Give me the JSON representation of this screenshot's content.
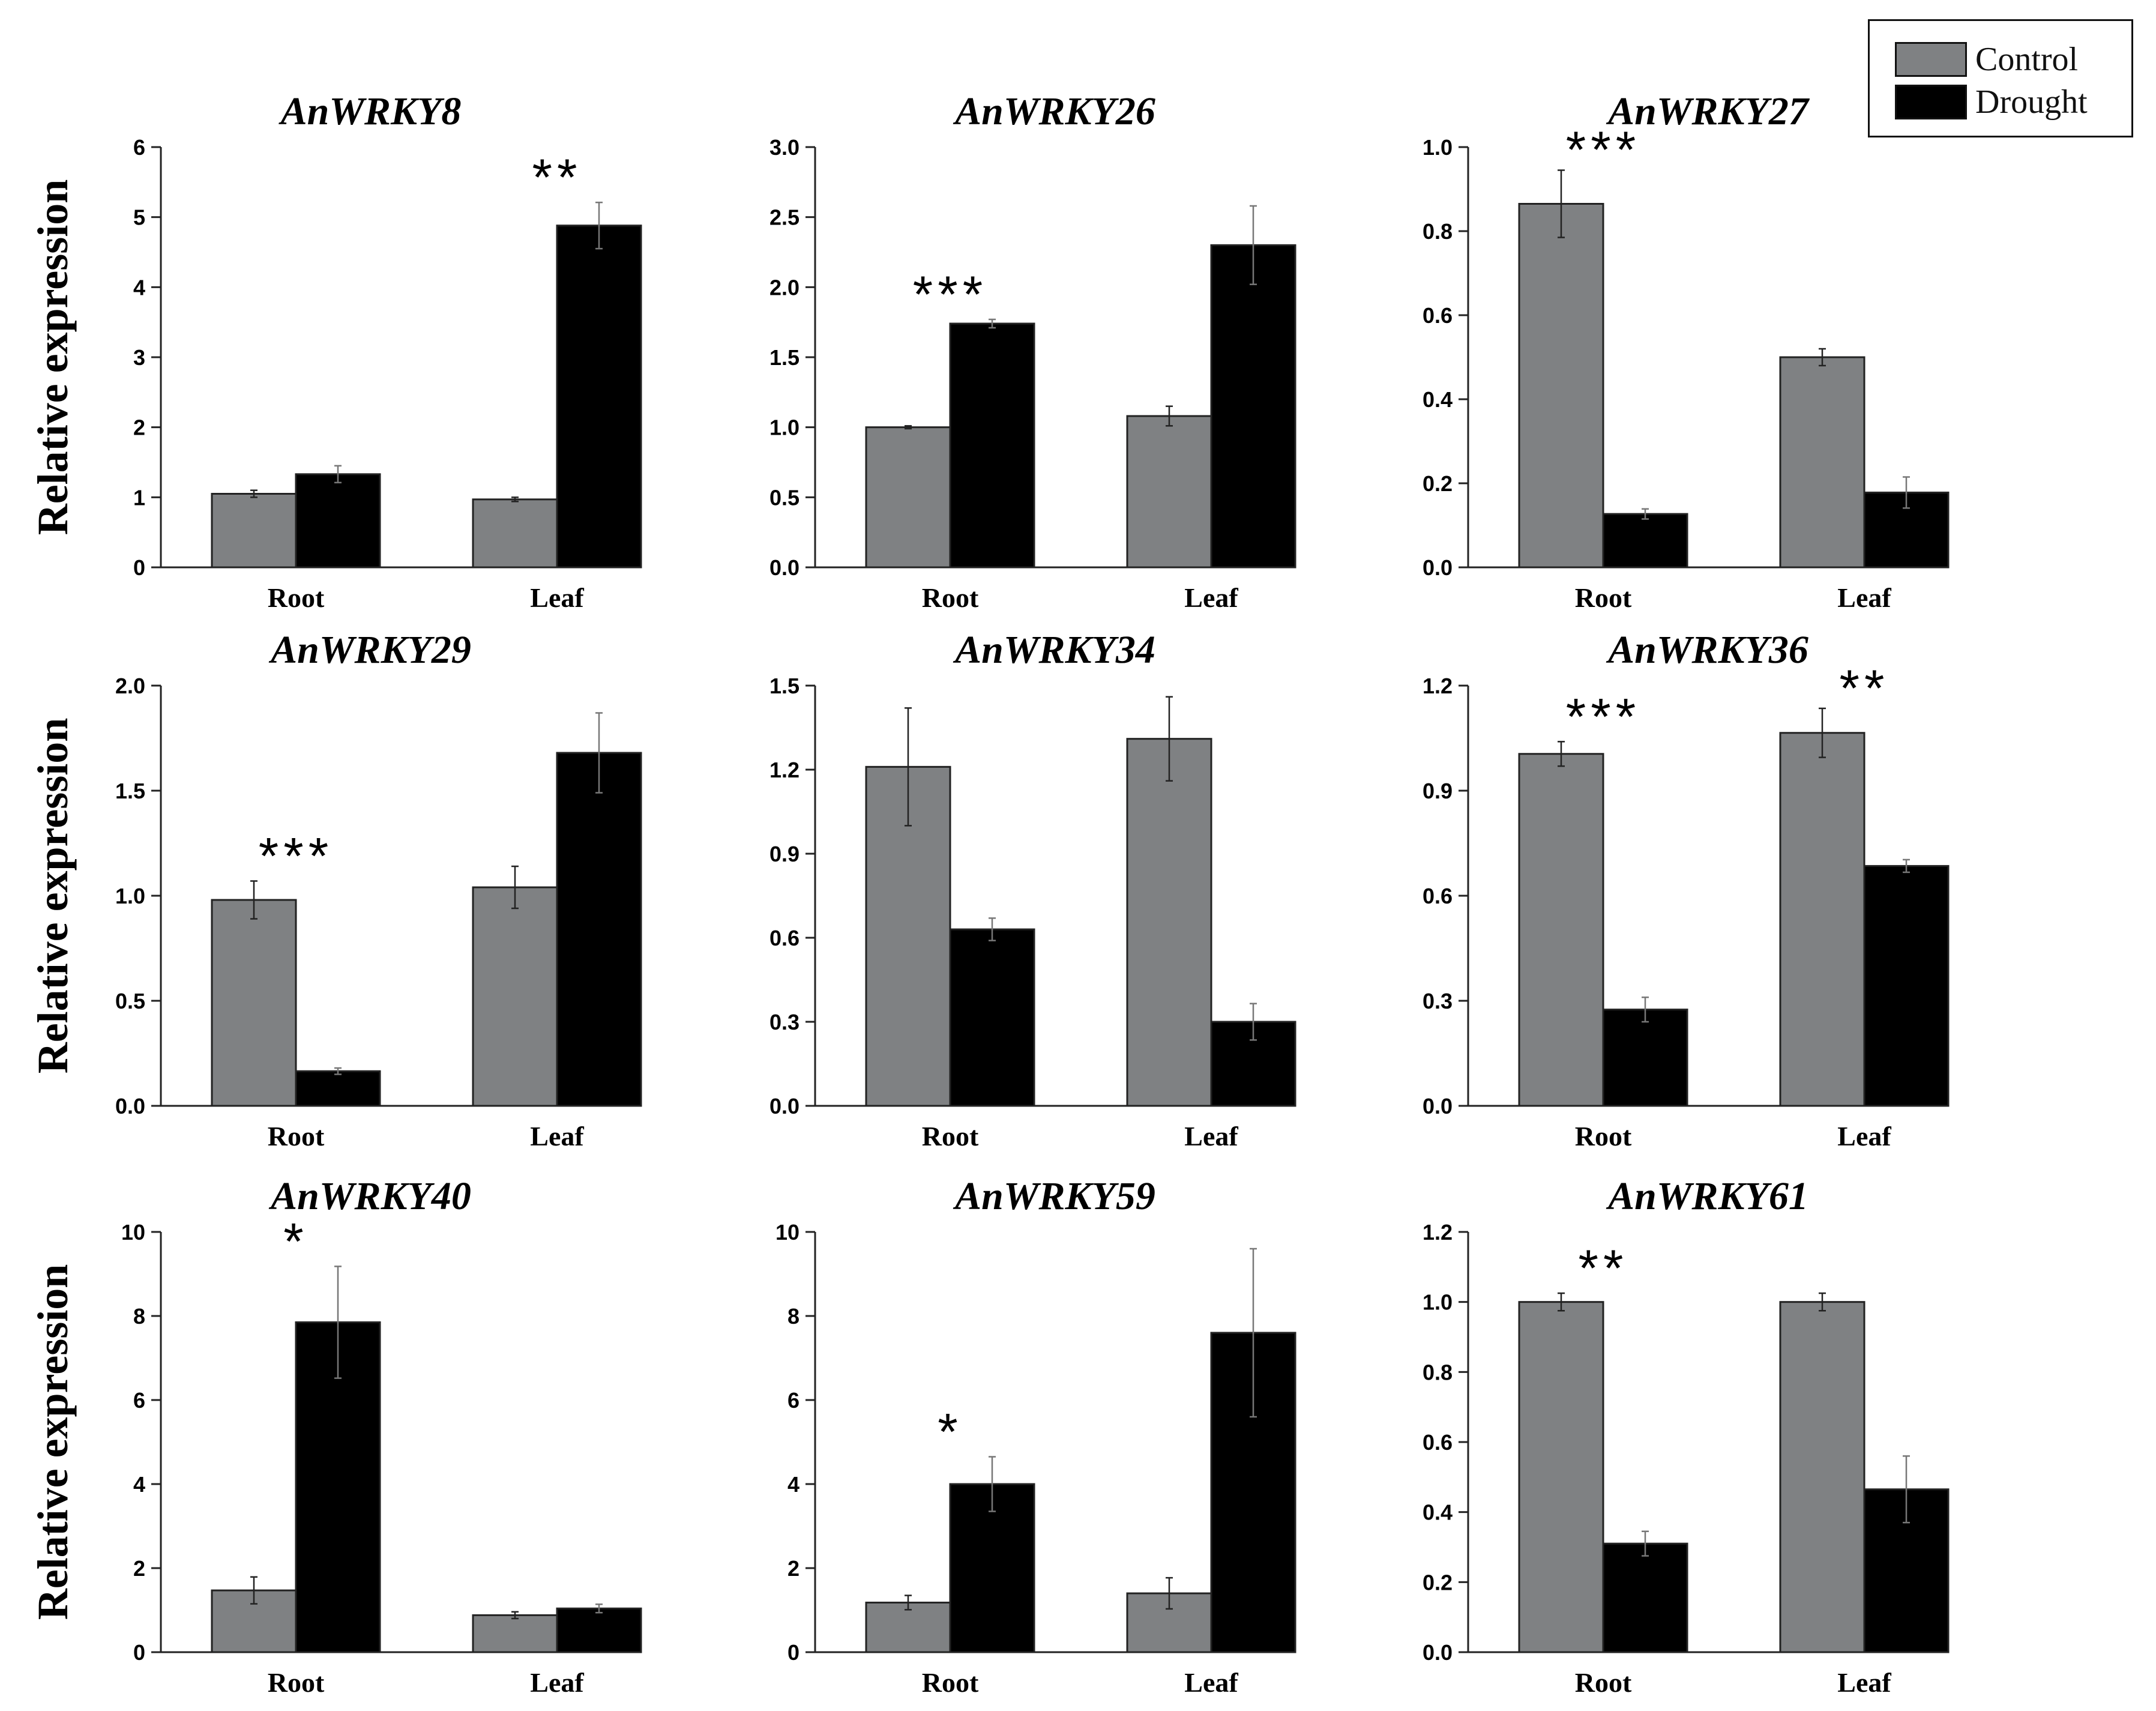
{
  "legend": {
    "control_label": "Control",
    "drought_label": "Drought",
    "control_color": "#7f8183",
    "drought_color": "#000000"
  },
  "ylabel": "Relative expression",
  "chart_data": [
    {
      "type": "bar",
      "title": "AnWRKY8",
      "categories": [
        "Root",
        "Leaf"
      ],
      "ylim": [
        0,
        6
      ],
      "yticks": [
        "0",
        "1",
        "2",
        "3",
        "4",
        "5",
        "6"
      ],
      "series": [
        {
          "name": "Control",
          "values": [
            1.05,
            0.97
          ],
          "errors": [
            0.05,
            0.03
          ]
        },
        {
          "name": "Drought",
          "values": [
            1.33,
            4.88
          ],
          "errors": [
            0.12,
            0.33
          ]
        }
      ],
      "annotations": [
        {
          "category": "Leaf",
          "text": "**"
        }
      ]
    },
    {
      "type": "bar",
      "title": "AnWRKY26",
      "categories": [
        "Root",
        "Leaf"
      ],
      "ylim": [
        0,
        3.0
      ],
      "yticks": [
        "0.0",
        "0.5",
        "1.0",
        "1.5",
        "2.0",
        "2.5",
        "3.0"
      ],
      "series": [
        {
          "name": "Control",
          "values": [
            1.0,
            1.08
          ],
          "errors": [
            0.01,
            0.07
          ]
        },
        {
          "name": "Drought",
          "values": [
            1.74,
            2.3
          ],
          "errors": [
            0.03,
            0.28
          ]
        }
      ],
      "annotations": [
        {
          "category": "Root",
          "text": "***"
        }
      ]
    },
    {
      "type": "bar",
      "title": "AnWRKY27",
      "categories": [
        "Root",
        "Leaf"
      ],
      "ylim": [
        0,
        1.0
      ],
      "yticks": [
        "0.0",
        "0.2",
        "0.4",
        "0.6",
        "0.8",
        "1.0"
      ],
      "series": [
        {
          "name": "Control",
          "values": [
            0.865,
            0.5
          ],
          "errors": [
            0.08,
            0.02
          ]
        },
        {
          "name": "Drought",
          "values": [
            0.127,
            0.178
          ],
          "errors": [
            0.012,
            0.037
          ]
        }
      ],
      "annotations": [
        {
          "category": "Root",
          "text": "***"
        }
      ]
    },
    {
      "type": "bar",
      "title": "AnWRKY29",
      "categories": [
        "Root",
        "Leaf"
      ],
      "ylim": [
        0,
        2.0
      ],
      "yticks": [
        "0.0",
        "0.5",
        "1.0",
        "1.5",
        "2.0"
      ],
      "series": [
        {
          "name": "Control",
          "values": [
            0.98,
            1.04
          ],
          "errors": [
            0.09,
            0.1
          ]
        },
        {
          "name": "Drought",
          "values": [
            0.165,
            1.68
          ],
          "errors": [
            0.015,
            0.19
          ]
        }
      ],
      "annotations": [
        {
          "category": "Root",
          "text": "***"
        }
      ]
    },
    {
      "type": "bar",
      "title": "AnWRKY34",
      "categories": [
        "Root",
        "Leaf"
      ],
      "ylim": [
        0,
        1.5
      ],
      "yticks": [
        "0.0",
        "0.3",
        "0.6",
        "0.9",
        "1.2",
        "1.5"
      ],
      "series": [
        {
          "name": "Control",
          "values": [
            1.21,
            1.31
          ],
          "errors": [
            0.21,
            0.15
          ]
        },
        {
          "name": "Drought",
          "values": [
            0.63,
            0.3
          ],
          "errors": [
            0.04,
            0.065
          ]
        }
      ],
      "annotations": []
    },
    {
      "type": "bar",
      "title": "AnWRKY36",
      "categories": [
        "Root",
        "Leaf"
      ],
      "ylim": [
        0,
        1.2
      ],
      "yticks": [
        "0.0",
        "0.3",
        "0.6",
        "0.9",
        "1.2"
      ],
      "series": [
        {
          "name": "Control",
          "values": [
            1.005,
            1.065
          ],
          "errors": [
            0.035,
            0.07
          ]
        },
        {
          "name": "Drought",
          "values": [
            0.275,
            0.685
          ],
          "errors": [
            0.035,
            0.018
          ]
        }
      ],
      "annotations": [
        {
          "category": "Root",
          "text": "***"
        },
        {
          "category": "Leaf",
          "text": "**"
        }
      ]
    },
    {
      "type": "bar",
      "title": "AnWRKY40",
      "categories": [
        "Root",
        "Leaf"
      ],
      "ylim": [
        0,
        10
      ],
      "yticks": [
        "0",
        "2",
        "4",
        "6",
        "8",
        "10"
      ],
      "series": [
        {
          "name": "Control",
          "values": [
            1.47,
            0.88
          ],
          "errors": [
            0.32,
            0.08
          ]
        },
        {
          "name": "Drought",
          "values": [
            7.85,
            1.04
          ],
          "errors": [
            1.33,
            0.1
          ]
        }
      ],
      "annotations": [
        {
          "category": "Root",
          "text": "*"
        }
      ]
    },
    {
      "type": "bar",
      "title": "AnWRKY59",
      "categories": [
        "Root",
        "Leaf"
      ],
      "ylim": [
        0,
        10
      ],
      "yticks": [
        "0",
        "2",
        "4",
        "6",
        "8",
        "10"
      ],
      "series": [
        {
          "name": "Control",
          "values": [
            1.18,
            1.4
          ],
          "errors": [
            0.17,
            0.37
          ]
        },
        {
          "name": "Drought",
          "values": [
            4.0,
            7.6
          ],
          "errors": [
            0.65,
            2.0
          ]
        }
      ],
      "annotations": [
        {
          "category": "Root",
          "text": "*"
        }
      ]
    },
    {
      "type": "bar",
      "title": "AnWRKY61",
      "categories": [
        "Root",
        "Leaf"
      ],
      "ylim": [
        0,
        1.2
      ],
      "yticks": [
        "0.0",
        "0.2",
        "0.4",
        "0.6",
        "0.8",
        "1.0",
        "1.2"
      ],
      "series": [
        {
          "name": "Control",
          "values": [
            1.0,
            1.0
          ],
          "errors": [
            0.025,
            0.025
          ]
        },
        {
          "name": "Drought",
          "values": [
            0.31,
            0.465
          ],
          "errors": [
            0.035,
            0.095
          ]
        }
      ],
      "annotations": [
        {
          "category": "Root",
          "text": "**"
        }
      ]
    }
  ]
}
